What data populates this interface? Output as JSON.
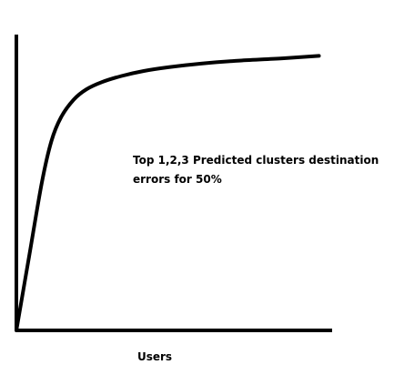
{
  "chart_data": {
    "type": "line",
    "title": "",
    "xlabel": "Users",
    "ylabel": "",
    "annotation_lines": [
      "Top 1,2,3 Predicted clusters destination",
      "errors for 50%"
    ],
    "xlim": [
      0,
      1
    ],
    "ylim": [
      0,
      1
    ],
    "grid": false,
    "series": [
      {
        "x": [
          0,
          0.04,
          0.08,
          0.11,
          0.14,
          0.18,
          0.22,
          0.27,
          0.33,
          0.4,
          0.48,
          0.58,
          0.7,
          0.84,
          0.95
        ],
        "y": [
          0,
          0.25,
          0.5,
          0.64,
          0.72,
          0.78,
          0.815,
          0.84,
          0.86,
          0.877,
          0.89,
          0.902,
          0.912,
          0.92,
          0.928
        ]
      }
    ],
    "colors": {
      "line": "#000000",
      "axis": "#000000",
      "background": "#ffffff"
    }
  }
}
